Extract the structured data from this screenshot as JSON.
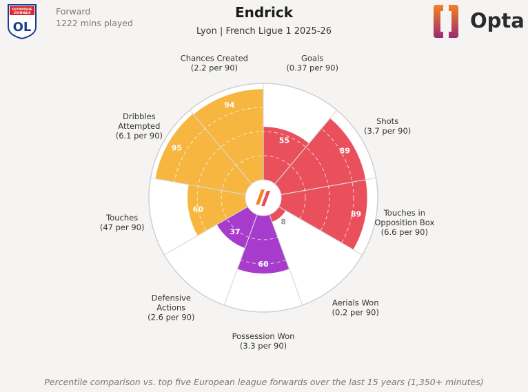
{
  "header": {
    "position": "Forward",
    "minutes": "1222 mins played",
    "player_name": "Endrick",
    "team_league": "Lyon | French Ligue 1 2025-26",
    "club_logo_text_top": "OLYMPIQUE LYONNAIS",
    "club_logo_text_main": "OL",
    "brand": "Opta"
  },
  "footnote": "Percentile comparison vs. top five European league forwards over the last 15 years (1,350+ minutes)",
  "colors": {
    "attacking": "#e9505c",
    "possession": "#f6b63f",
    "defending": "#a63bcc",
    "background": "#f5f4f2",
    "opta_orange": "#f58220",
    "opta_purple": "#9b2a73",
    "club_blue": "#1b3f8f",
    "club_red": "#d7282f"
  },
  "chart_data": {
    "type": "polar-bar",
    "range": [
      0,
      100
    ],
    "segments": [
      {
        "metric": "Goals",
        "detail": "(0.37 per 90)",
        "value": 55,
        "group": "attacking"
      },
      {
        "metric": "Shots",
        "detail": "(3.7 per 90)",
        "value": 89,
        "group": "attacking"
      },
      {
        "metric": "Touches in Opposition Box",
        "detail": "(6.6 per 90)",
        "value": 89,
        "group": "attacking"
      },
      {
        "metric": "Aerials Won",
        "detail": "(0.2 per 90)",
        "value": 8,
        "group": "attacking"
      },
      {
        "metric": "Possession Won",
        "detail": "(3.3 per 90)",
        "value": 60,
        "group": "defending"
      },
      {
        "metric": "Defensive Actions",
        "detail": "(2.6 per 90)",
        "value": 37,
        "group": "defending"
      },
      {
        "metric": "Touches",
        "detail": "(47 per 90)",
        "value": 60,
        "group": "possession"
      },
      {
        "metric": "Dribbles Attempted",
        "detail": "(6.1 per 90)",
        "value": 95,
        "group": "possession"
      },
      {
        "metric": "Chances Created",
        "detail": "(2.2 per 90)",
        "value": 94,
        "group": "possession"
      }
    ]
  }
}
